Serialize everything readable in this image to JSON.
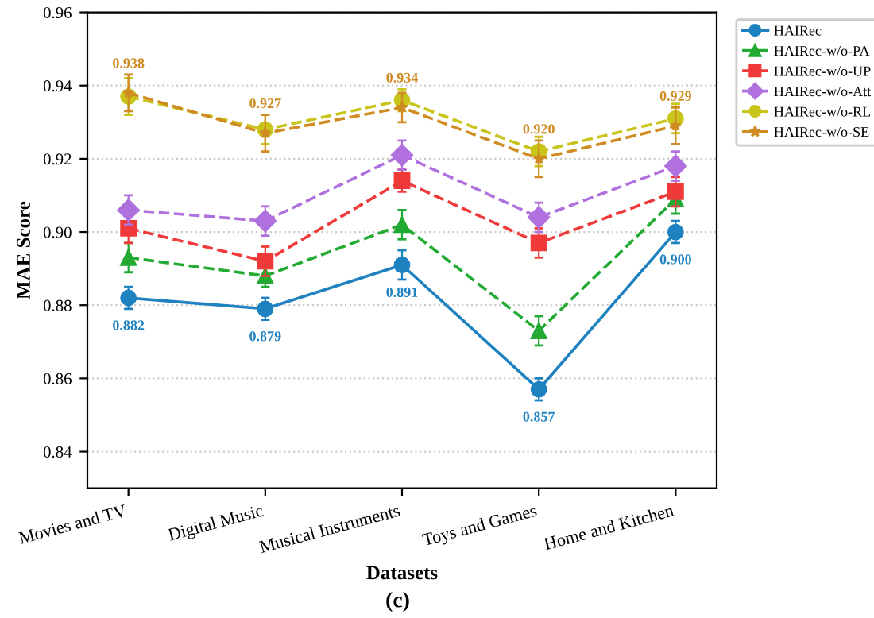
{
  "chart_data": {
    "type": "line",
    "xlabel": "Datasets",
    "ylabel": "MAE Score",
    "categories": [
      "Movies and TV",
      "Digital Music",
      "Musical Instruments",
      "Toys and Games",
      "Home and Kitchen"
    ],
    "ylim": [
      0.83,
      0.96
    ],
    "yticks": [
      {
        "value": 0.84,
        "label": "0.84"
      },
      {
        "value": 0.86,
        "label": "0.86"
      },
      {
        "value": 0.88,
        "label": "0.88"
      },
      {
        "value": 0.9,
        "label": "0.90"
      },
      {
        "value": 0.92,
        "label": "0.92"
      },
      {
        "value": 0.94,
        "label": "0.94"
      },
      {
        "value": 0.96,
        "label": "0.96"
      }
    ],
    "grid": "y",
    "legend": "top right",
    "series": [
      {
        "name": "HAIRec",
        "color": "#1f82c0",
        "marker": "circle",
        "line_style": "solid",
        "values": [
          0.882,
          0.879,
          0.891,
          0.857,
          0.9
        ],
        "errors": [
          0.003,
          0.003,
          0.004,
          0.003,
          0.003
        ],
        "value_labels": [
          "0.882",
          "0.879",
          "0.891",
          "0.857",
          "0.900"
        ]
      },
      {
        "name": "HAIRec-w/o-PA",
        "color": "#22aa33",
        "marker": "triangle",
        "line_style": "dashed",
        "values": [
          0.893,
          0.888,
          0.902,
          0.873,
          0.909
        ],
        "errors": [
          0.004,
          0.003,
          0.004,
          0.004,
          0.004
        ]
      },
      {
        "name": "HAIRec-w/o-UP",
        "color": "#f03a3a",
        "marker": "square",
        "line_style": "dashed",
        "values": [
          0.901,
          0.892,
          0.914,
          0.897,
          0.911
        ],
        "errors": [
          0.004,
          0.004,
          0.003,
          0.004,
          0.004
        ]
      },
      {
        "name": "HAIRec-w/o-Att",
        "color": "#b070dd",
        "marker": "diamond",
        "line_style": "dashed",
        "values": [
          0.906,
          0.903,
          0.921,
          0.904,
          0.918
        ],
        "errors": [
          0.004,
          0.004,
          0.004,
          0.004,
          0.004
        ]
      },
      {
        "name": "HAIRec-w/o-RL",
        "color": "#c8c41a",
        "marker": "circle",
        "line_style": "dashed",
        "values": [
          0.937,
          0.928,
          0.936,
          0.922,
          0.931
        ],
        "errors": [
          0.005,
          0.004,
          0.003,
          0.004,
          0.004
        ]
      },
      {
        "name": "HAIRec-w/o-SE",
        "color": "#d08c22",
        "marker": "star",
        "line_style": "dashed",
        "values": [
          0.938,
          0.927,
          0.934,
          0.92,
          0.929
        ],
        "errors": [
          0.005,
          0.005,
          0.004,
          0.005,
          0.005
        ],
        "value_labels": [
          "0.938",
          "0.927",
          "0.934",
          "0.920",
          "0.929"
        ]
      }
    ],
    "annotations": [
      "(c)"
    ]
  }
}
